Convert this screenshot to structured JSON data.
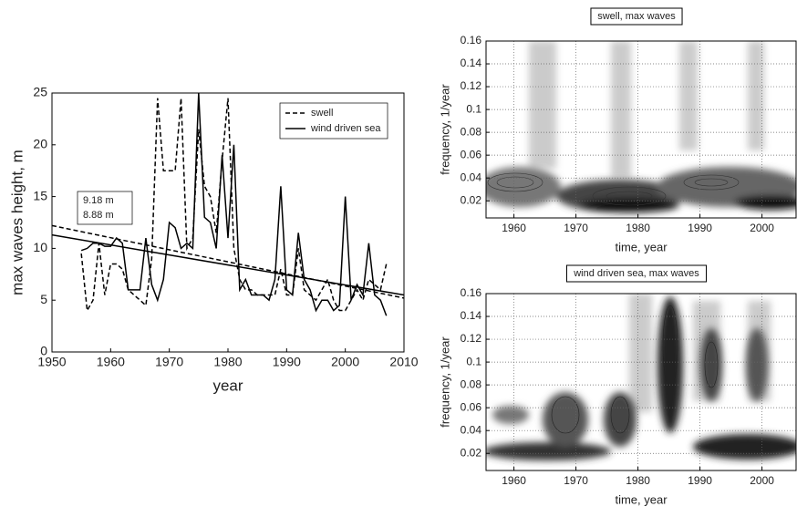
{
  "chart_data": [
    {
      "type": "line",
      "xlabel": "year",
      "ylabel": "max waves height, m",
      "xlim": [
        1950,
        2010
      ],
      "xticks": [
        1950,
        1960,
        1970,
        1980,
        1990,
        2000,
        2010
      ],
      "ylim": [
        0,
        25
      ],
      "yticks": [
        0,
        5,
        10,
        15,
        20,
        25
      ],
      "grid": false,
      "legend": "upper right",
      "x": [
        1955,
        1956,
        1957,
        1958,
        1959,
        1960,
        1961,
        1962,
        1963,
        1964,
        1965,
        1966,
        1967,
        1968,
        1969,
        1970,
        1971,
        1972,
        1973,
        1974,
        1975,
        1976,
        1977,
        1978,
        1979,
        1980,
        1981,
        1982,
        1983,
        1984,
        1985,
        1986,
        1987,
        1988,
        1989,
        1990,
        1991,
        1992,
        1993,
        1994,
        1995,
        1996,
        1997,
        1998,
        1999,
        2000,
        2001,
        2002,
        2003,
        2004,
        2005,
        2006,
        2007
      ],
      "series": [
        {
          "name": "swell",
          "color": "#000000",
          "linestyle": "dashed",
          "values": [
            9.5,
            4,
            5,
            10.5,
            5.5,
            8.5,
            8.5,
            8,
            6,
            5.5,
            5,
            4.5,
            9,
            24.5,
            17.5,
            17.5,
            17.5,
            24.5,
            10,
            11,
            21.5,
            16,
            15,
            11.5,
            18.5,
            24.5,
            10,
            7,
            6,
            6,
            5.5,
            5.5,
            5.5,
            5.5,
            8,
            5.5,
            5.5,
            10,
            6,
            5.5,
            5,
            6,
            7,
            5,
            4,
            4,
            5,
            6,
            5,
            7,
            6.5,
            6,
            8.5
          ]
        },
        {
          "name": "wind driven sea",
          "color": "#000000",
          "linestyle": "solid",
          "values": [
            9.8,
            10,
            10.5,
            10.5,
            10.2,
            10.2,
            11,
            10.5,
            6,
            6,
            6,
            11,
            6.5,
            5,
            7,
            12.5,
            12,
            10,
            10.5,
            10,
            25,
            13,
            12.5,
            10,
            19,
            11,
            20,
            6,
            7,
            5.5,
            5.5,
            5.5,
            5,
            7,
            16,
            6,
            5.5,
            11.5,
            7,
            6,
            4,
            5,
            5,
            4,
            4.5,
            15,
            5,
            6.5,
            5.5,
            10.5,
            5.5,
            5,
            3.5
          ]
        }
      ],
      "trends": [
        {
          "color": "#000000",
          "linestyle": "dashed",
          "x": [
            1950,
            2010
          ],
          "values": [
            12.2,
            5.2
          ]
        },
        {
          "color": "#000000",
          "linestyle": "solid",
          "x": [
            1950,
            2010
          ],
          "values": [
            11.3,
            5.5
          ]
        }
      ],
      "annotations": [
        "9.18 m",
        "8.88 m"
      ]
    },
    {
      "type": "contour",
      "title": "swell, max waves",
      "xlabel": "time, year",
      "ylabel": "frequency, 1/year",
      "xlim": [
        1955.5,
        2005.5
      ],
      "xticks": [
        1960,
        1970,
        1980,
        1990,
        2000
      ],
      "ylim": [
        0.005,
        0.16
      ],
      "yticks": [
        0.02,
        0.04,
        0.06,
        0.08,
        0.1,
        0.12,
        0.14,
        0.16
      ],
      "grid": true
    },
    {
      "type": "contour",
      "title": "wind driven sea, max waves",
      "xlabel": "time, year",
      "ylabel": "frequency, 1/year",
      "xlim": [
        1955.5,
        2005.5
      ],
      "xticks": [
        1960,
        1970,
        1980,
        1990,
        2000
      ],
      "ylim": [
        0.005,
        0.16
      ],
      "yticks": [
        0.02,
        0.04,
        0.06,
        0.08,
        0.1,
        0.12,
        0.14,
        0.16
      ],
      "grid": true
    }
  ]
}
